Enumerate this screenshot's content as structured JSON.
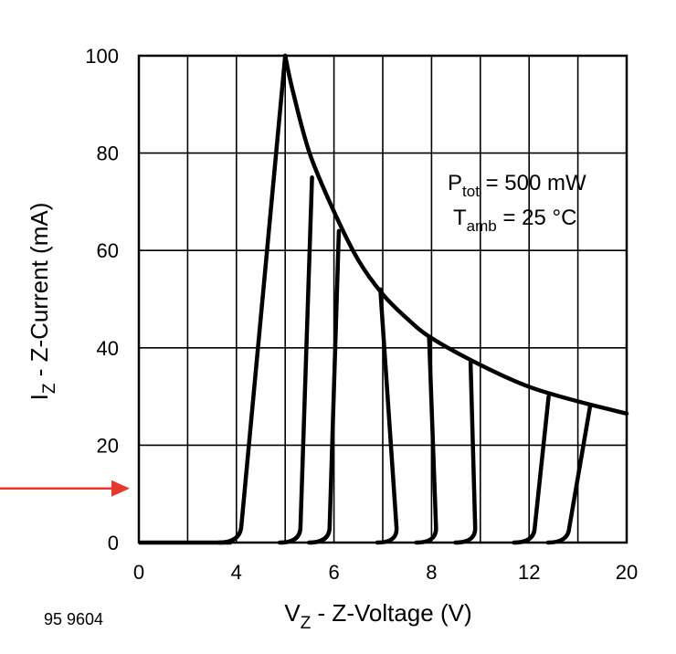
{
  "chart_data": {
    "type": "line",
    "xlabel": {
      "main": "V",
      "sub": "Z",
      "rest": " - Z-Voltage (V)"
    },
    "ylabel": {
      "main": "I",
      "sub": "Z",
      "rest": " - Z-Current (mA)"
    },
    "x_tick_labels": [
      "0",
      "4",
      "6",
      "8",
      "12",
      "20"
    ],
    "y_tick_labels": [
      "0",
      "20",
      "40",
      "60",
      "80",
      "100"
    ],
    "y_ticks": [
      0,
      20,
      40,
      60,
      80,
      100
    ],
    "ylim": [
      0,
      100
    ],
    "x_grid_divisions": 10,
    "grid": true,
    "annotation": {
      "line1": {
        "main": "P",
        "sub": "tot",
        "rest": " = 500 mW"
      },
      "line2": {
        "main": "T",
        "sub": "amb",
        "rest": " = 25 °C"
      },
      "placement": "top-right"
    },
    "figure_code": "95 9604",
    "zener_curves": [
      {
        "knee_div": 2.05,
        "top_div": 3.0,
        "top_mA": 100
      },
      {
        "knee_div": 3.3,
        "top_div": 3.55,
        "top_mA": 75
      },
      {
        "knee_div": 3.9,
        "top_div": 4.1,
        "top_mA": 64
      },
      {
        "knee_div": 5.3,
        "top_div": 4.95,
        "top_mA": 52
      },
      {
        "knee_div": 6.1,
        "top_div": 5.95,
        "top_mA": 42
      },
      {
        "knee_div": 6.9,
        "top_div": 6.8,
        "top_mA": 37
      },
      {
        "knee_div": 8.1,
        "top_div": 8.4,
        "top_mA": 30
      },
      {
        "knee_div": 8.8,
        "top_div": 9.25,
        "top_mA": 28
      }
    ],
    "power_limit_curve": [
      {
        "div": 3.0,
        "mA": 100
      },
      {
        "div": 3.15,
        "mA": 93
      },
      {
        "div": 3.5,
        "mA": 80
      },
      {
        "div": 4.0,
        "mA": 68
      },
      {
        "div": 4.5,
        "mA": 58
      },
      {
        "div": 5.0,
        "mA": 51
      },
      {
        "div": 5.5,
        "mA": 46
      },
      {
        "div": 6.0,
        "mA": 42
      },
      {
        "div": 7.0,
        "mA": 36.5
      },
      {
        "div": 8.0,
        "mA": 32
      },
      {
        "div": 9.0,
        "mA": 29
      },
      {
        "div": 10.0,
        "mA": 26.5
      }
    ]
  },
  "annotation_arrow": {
    "color": "#e8382b",
    "target_mA": 10
  }
}
